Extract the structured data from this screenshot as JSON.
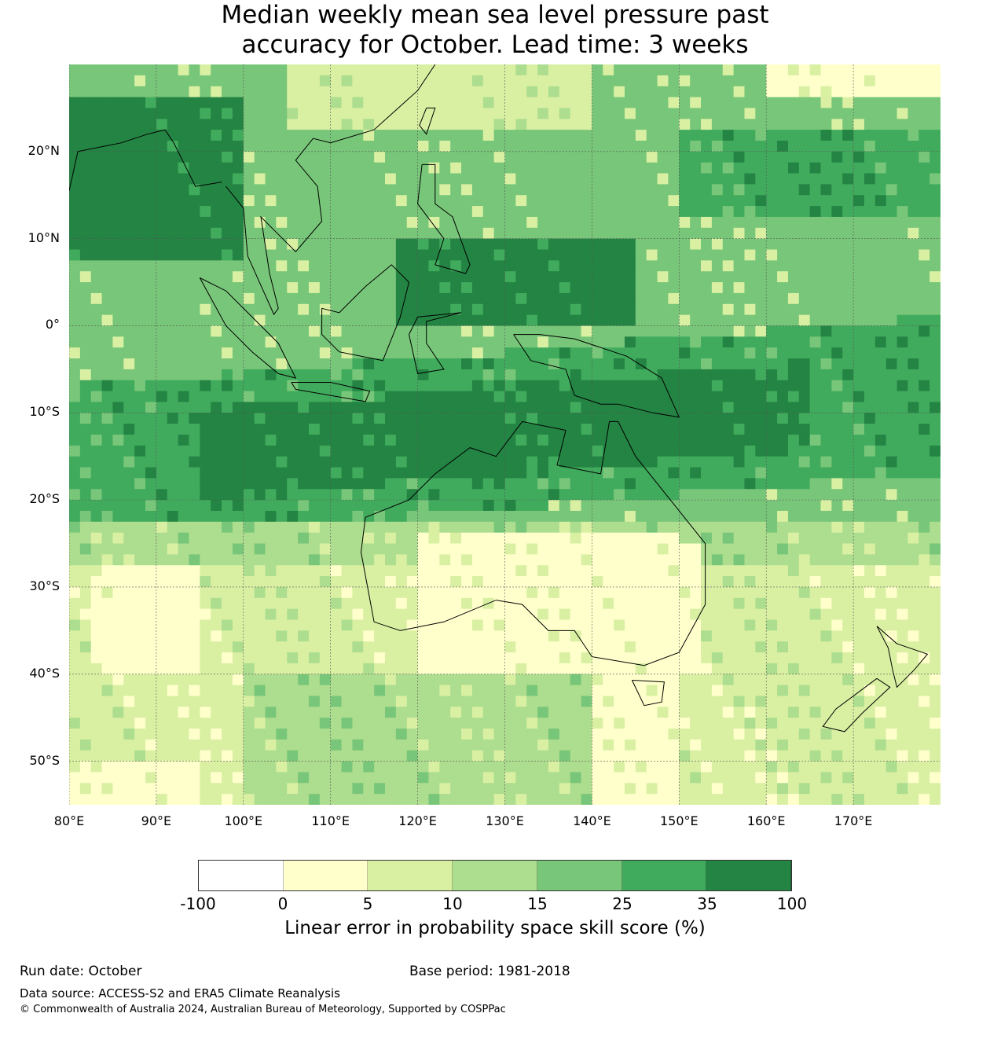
{
  "title_line1": "Median weekly mean sea level pressure past",
  "title_line2": "accuracy for October. Lead time: 3 weeks",
  "map": {
    "lon_range": [
      80,
      180
    ],
    "lat_range": [
      -55,
      30
    ],
    "lat_labels": [
      "20°N",
      "10°N",
      "0°",
      "10°S",
      "20°S",
      "30°S",
      "40°S",
      "50°S"
    ],
    "lat_values": [
      20,
      10,
      0,
      -10,
      -20,
      -30,
      -40,
      -50
    ],
    "lon_labels": [
      "80°E",
      "90°E",
      "100°E",
      "110°E",
      "120°E",
      "130°E",
      "140°E",
      "150°E",
      "160°E",
      "170°E"
    ],
    "lon_values": [
      80,
      90,
      100,
      110,
      120,
      130,
      140,
      150,
      160,
      170
    ]
  },
  "colorbar": {
    "ticks": [
      "-100",
      "0",
      "5",
      "10",
      "15",
      "25",
      "35",
      "100"
    ],
    "bounds": [
      -100,
      0,
      5,
      10,
      15,
      25,
      35,
      100
    ],
    "colors": [
      "#ffffff",
      "#ffffcc",
      "#d9f0a3",
      "#addd8e",
      "#78c679",
      "#41ab5d",
      "#238443"
    ],
    "label": "Linear error in probability space skill score (%)"
  },
  "footer": {
    "run_date": "Run date: October",
    "base_period": "Base period: 1981-2018",
    "data_source": "Data source: ACCESS-S2 and ERA5 Climate Reanalysis",
    "copyright": "© Commonwealth of Australia 2024, Australian Bureau of Meteorology, Supported by COSPPac"
  }
}
